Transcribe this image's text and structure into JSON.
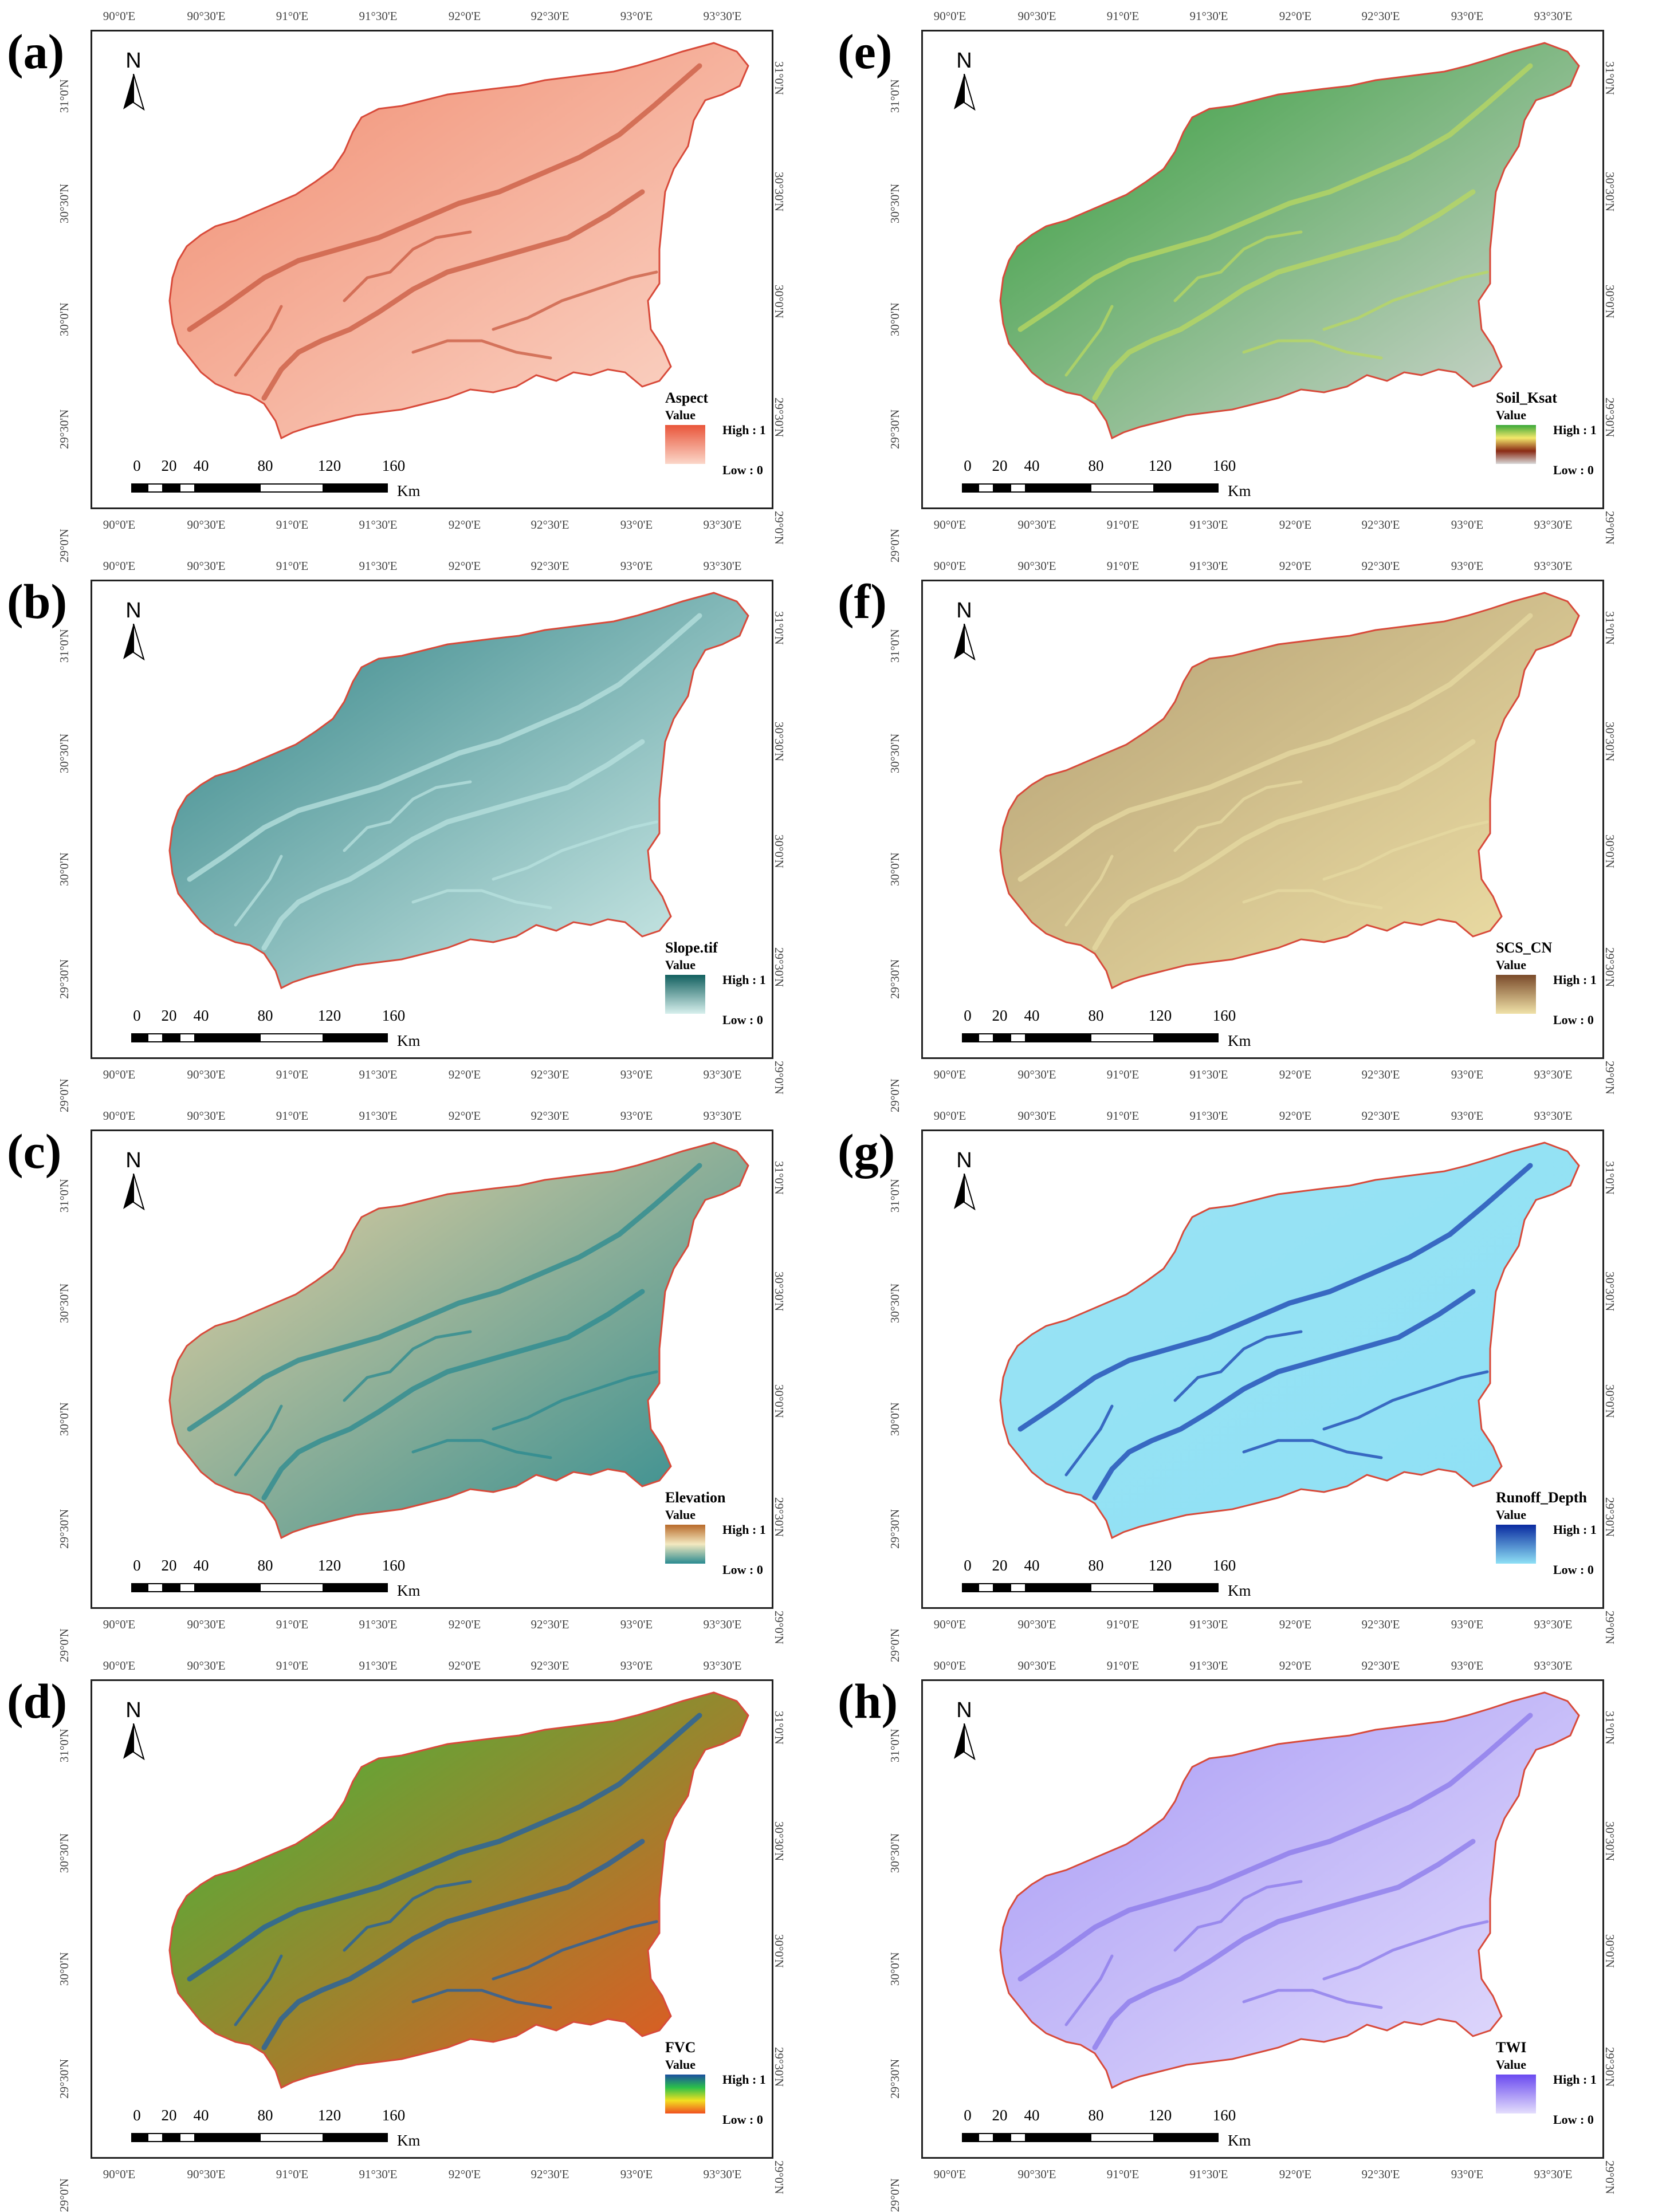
{
  "panels": [
    {
      "id": "a",
      "label": "(a)",
      "legend_title": "Aspect",
      "ramp": [
        "#e9553a",
        "#fbd7c9"
      ],
      "fill": "#f08c70",
      "stroke": "#d84a3a",
      "texture": "#c85a40"
    },
    {
      "id": "e",
      "label": "(e)",
      "legend_title": "Soil_Ksat",
      "ramp": [
        "#39a83a",
        "#f3e86a",
        "#8a2a14",
        "#d8d8d8"
      ],
      "fill": "#2f9a35",
      "stroke": "#d84a3a",
      "texture": "#b9d860"
    },
    {
      "id": "b",
      "label": "(b)",
      "legend_title": "Slope.tif",
      "ramp": [
        "#12605f",
        "#d7f0ed"
      ],
      "fill": "#2e8083",
      "stroke": "#d84a3a",
      "texture": "#b8e2df"
    },
    {
      "id": "f",
      "label": "(f)",
      "legend_title": "SCS_CN",
      "ramp": [
        "#7a4a2a",
        "#f0e2a8"
      ],
      "fill": "#b39e72",
      "stroke": "#d84a3a",
      "texture": "#e6d9a2"
    },
    {
      "id": "c",
      "label": "(c)",
      "legend_title": "Elevation",
      "ramp": [
        "#b86a2a",
        "#f3e9c0",
        "#2a8a90"
      ],
      "fill": "#eed3a0",
      "stroke": "#d84a3a",
      "texture": "#2a8a90"
    },
    {
      "id": "g",
      "label": "(g)",
      "legend_title": "Runoff_Depth",
      "ramp": [
        "#0a2aa0",
        "#8ee0f5"
      ],
      "fill": "#9ae3f4",
      "stroke": "#d84a3a",
      "texture": "#1a40b0"
    },
    {
      "id": "d",
      "label": "(d)",
      "legend_title": "FVC",
      "ramp": [
        "#1b4fa0",
        "#2bbf4a",
        "#f2e020",
        "#f05020"
      ],
      "fill": "#3cbd3c",
      "stroke": "#d84a3a",
      "texture": "#1e5fa8"
    },
    {
      "id": "h",
      "label": "(h)",
      "legend_title": "TWI",
      "ramp": [
        "#6a4af0",
        "#e4defc"
      ],
      "fill": "#a89af5",
      "stroke": "#d84a3a",
      "texture": "#8a78ea"
    }
  ],
  "legend_common": {
    "value": "Value",
    "high": "High : 1",
    "low": "Low : 0"
  },
  "lon_ticks": [
    "90°0'E",
    "90°30'E",
    "91°0'E",
    "91°30'E",
    "92°0'E",
    "92°30'E",
    "93°0'E",
    "93°30'E"
  ],
  "lat_ticks": [
    "31°0'N",
    "30°30'N",
    "30°0'N",
    "29°30'N",
    "29°0'N"
  ],
  "scalebar": {
    "labels": [
      "0",
      "20",
      "40",
      "80",
      "120",
      "160"
    ],
    "unit": "Km"
  },
  "north_letter": "N"
}
